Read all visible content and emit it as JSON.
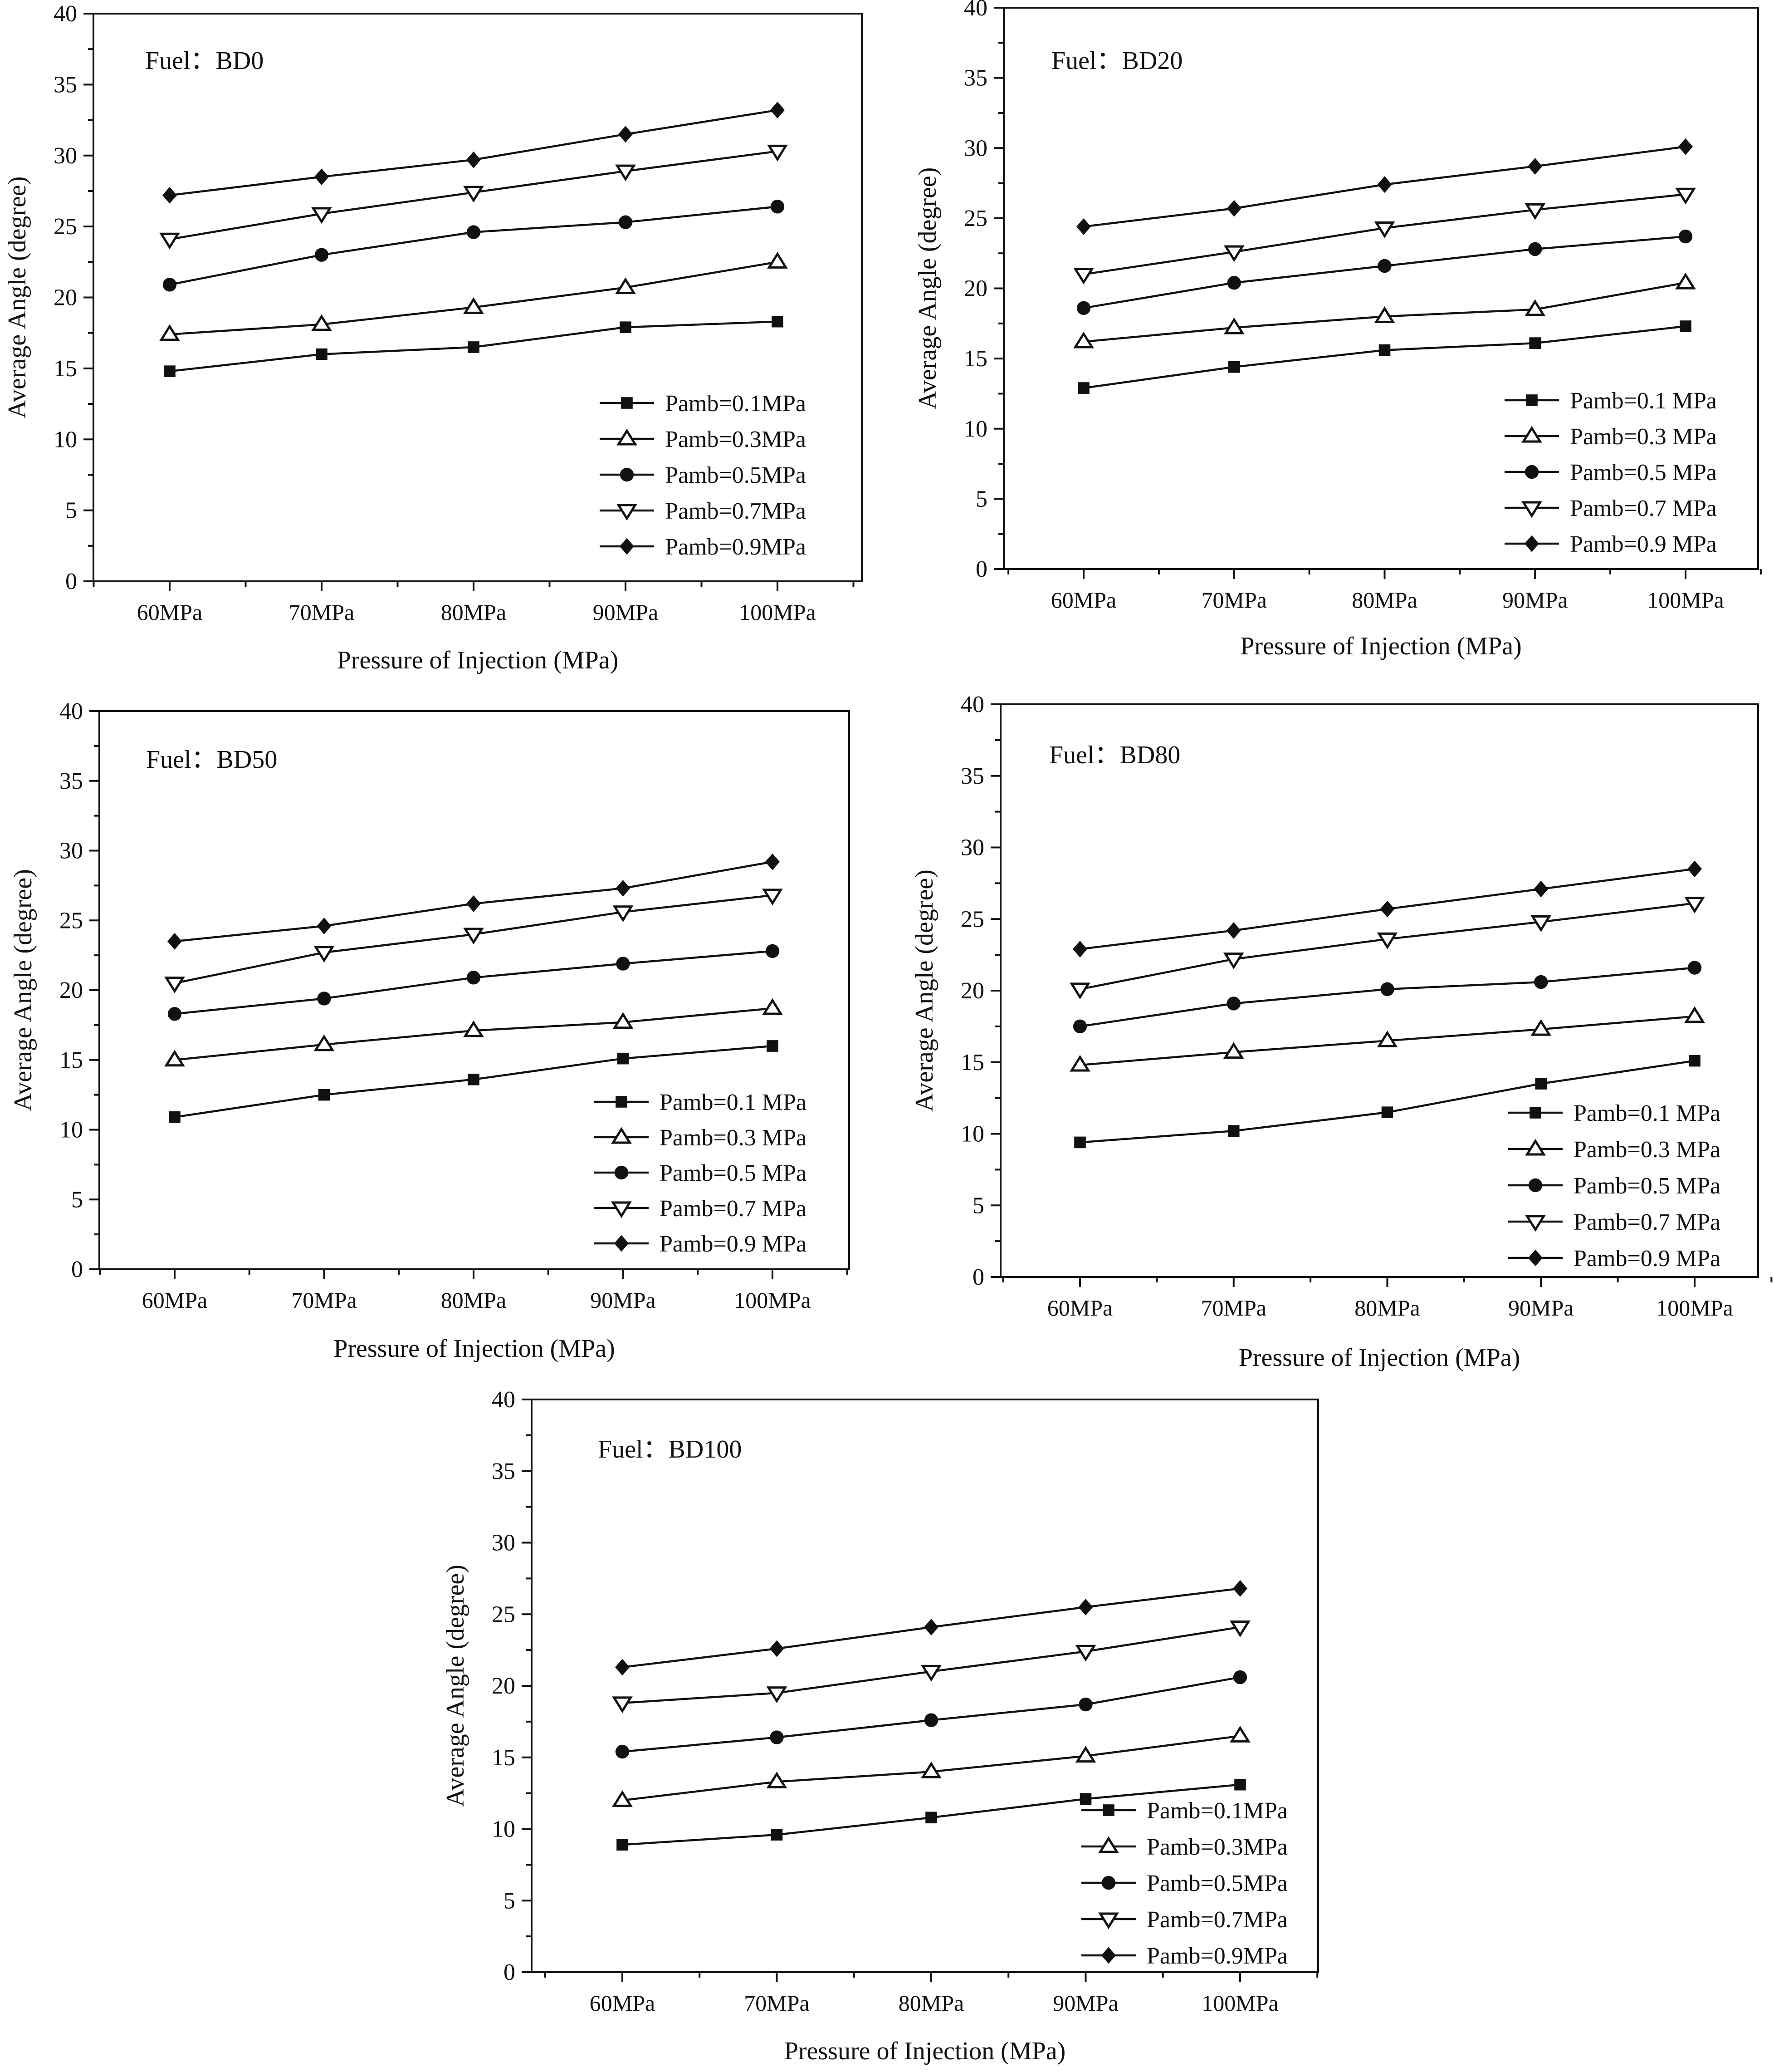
{
  "figure": {
    "description_hidden": false
  },
  "chart_data": [
    {
      "type": "line",
      "title": "Fuel：BD0",
      "xlabel": "Pressure of Injection (MPa)",
      "ylabel": "Average Angle (degree)",
      "ylim": [
        0,
        40
      ],
      "yticks": [
        0,
        5,
        10,
        15,
        20,
        25,
        30,
        35,
        40
      ],
      "categories": [
        "60MPa",
        "70MPa",
        "80MPa",
        "90MPa",
        "100MPa"
      ],
      "legend_position": "bottom-right",
      "series": [
        {
          "name": "Pamb=0.1MPa",
          "marker": "square",
          "values": [
            14.8,
            16.0,
            16.5,
            17.9,
            18.3
          ]
        },
        {
          "name": "Pamb=0.3MPa",
          "marker": "triangle-up",
          "values": [
            17.4,
            18.1,
            19.3,
            20.7,
            22.5
          ]
        },
        {
          "name": "Pamb=0.5MPa",
          "marker": "circle",
          "values": [
            20.9,
            23.0,
            24.6,
            25.3,
            26.4
          ]
        },
        {
          "name": "Pamb=0.7MPa",
          "marker": "triangle-down",
          "values": [
            24.1,
            25.9,
            27.4,
            28.9,
            30.3
          ]
        },
        {
          "name": "Pamb=0.9MPa",
          "marker": "diamond",
          "values": [
            27.2,
            28.5,
            29.7,
            31.5,
            33.2
          ]
        }
      ]
    },
    {
      "type": "line",
      "title": "Fuel：BD20",
      "xlabel": "Pressure of Injection (MPa)",
      "ylabel": "Average Angle (degree)",
      "ylim": [
        0,
        40
      ],
      "yticks": [
        0,
        5,
        10,
        15,
        20,
        25,
        30,
        35,
        40
      ],
      "categories": [
        "60MPa",
        "70MPa",
        "80MPa",
        "90MPa",
        "100MPa"
      ],
      "legend_position": "bottom-right",
      "series": [
        {
          "name": "Pamb=0.1 MPa",
          "marker": "square",
          "values": [
            12.9,
            14.4,
            15.6,
            16.1,
            17.3
          ]
        },
        {
          "name": "Pamb=0.3 MPa",
          "marker": "triangle-up",
          "values": [
            16.2,
            17.2,
            18.0,
            18.5,
            20.4
          ]
        },
        {
          "name": "Pamb=0.5 MPa",
          "marker": "circle",
          "values": [
            18.6,
            20.4,
            21.6,
            22.8,
            23.7
          ]
        },
        {
          "name": "Pamb=0.7 MPa",
          "marker": "triangle-down",
          "values": [
            21.0,
            22.6,
            24.3,
            25.6,
            26.7
          ]
        },
        {
          "name": "Pamb=0.9 MPa",
          "marker": "diamond",
          "values": [
            24.4,
            25.7,
            27.4,
            28.7,
            30.1
          ]
        }
      ]
    },
    {
      "type": "line",
      "title": "Fuel：BD50",
      "xlabel": "Pressure of Injection (MPa)",
      "ylabel": "Average Angle (degree)",
      "ylim": [
        0,
        40
      ],
      "yticks": [
        0,
        5,
        10,
        15,
        20,
        25,
        30,
        35,
        40
      ],
      "categories": [
        "60MPa",
        "70MPa",
        "80MPa",
        "90MPa",
        "100MPa"
      ],
      "legend_position": "bottom-right",
      "series": [
        {
          "name": "Pamb=0.1 MPa",
          "marker": "square",
          "values": [
            10.9,
            12.5,
            13.6,
            15.1,
            16.0
          ]
        },
        {
          "name": "Pamb=0.3 MPa",
          "marker": "triangle-up",
          "values": [
            15.0,
            16.1,
            17.1,
            17.7,
            18.7
          ]
        },
        {
          "name": "Pamb=0.5 MPa",
          "marker": "circle",
          "values": [
            18.3,
            19.4,
            20.9,
            21.9,
            22.8
          ]
        },
        {
          "name": "Pamb=0.7 MPa",
          "marker": "triangle-down",
          "values": [
            20.5,
            22.7,
            24.0,
            25.6,
            26.8
          ]
        },
        {
          "name": "Pamb=0.9 MPa",
          "marker": "diamond",
          "values": [
            23.5,
            24.6,
            26.2,
            27.3,
            29.2
          ]
        }
      ]
    },
    {
      "type": "line",
      "title": "Fuel：BD80",
      "xlabel": "Pressure of Injection (MPa)",
      "ylabel": "Average Angle (degree)",
      "ylim": [
        0,
        40
      ],
      "yticks": [
        0,
        5,
        10,
        15,
        20,
        25,
        30,
        35,
        40
      ],
      "categories": [
        "60MPa",
        "70MPa",
        "80MPa",
        "90MPa",
        "100MPa"
      ],
      "legend_position": "bottom-right",
      "series": [
        {
          "name": "Pamb=0.1 MPa",
          "marker": "square",
          "values": [
            9.4,
            10.2,
            11.5,
            13.5,
            15.1
          ]
        },
        {
          "name": "Pamb=0.3 MPa",
          "marker": "triangle-up",
          "values": [
            14.8,
            15.7,
            16.5,
            17.3,
            18.2
          ]
        },
        {
          "name": "Pamb=0.5 MPa",
          "marker": "circle",
          "values": [
            17.5,
            19.1,
            20.1,
            20.6,
            21.6
          ]
        },
        {
          "name": "Pamb=0.7 MPa",
          "marker": "triangle-down",
          "values": [
            20.1,
            22.2,
            23.6,
            24.8,
            26.1
          ]
        },
        {
          "name": "Pamb=0.9 MPa",
          "marker": "diamond",
          "values": [
            22.9,
            24.2,
            25.7,
            27.1,
            28.5
          ]
        }
      ]
    },
    {
      "type": "line",
      "title": "Fuel：BD100",
      "xlabel": "Pressure of Injection (MPa)",
      "ylabel": "Average Angle (degree)",
      "ylim": [
        0,
        40
      ],
      "yticks": [
        0,
        5,
        10,
        15,
        20,
        25,
        30,
        35,
        40
      ],
      "categories": [
        "60MPa",
        "70MPa",
        "80MPa",
        "90MPa",
        "100MPa"
      ],
      "legend_position": "bottom-right",
      "series": [
        {
          "name": "Pamb=0.1MPa",
          "marker": "square",
          "values": [
            8.9,
            9.6,
            10.8,
            12.1,
            13.1
          ]
        },
        {
          "name": "Pamb=0.3MPa",
          "marker": "triangle-up",
          "values": [
            12.0,
            13.3,
            14.0,
            15.1,
            16.5
          ]
        },
        {
          "name": "Pamb=0.5MPa",
          "marker": "circle",
          "values": [
            15.4,
            16.4,
            17.6,
            18.7,
            20.6
          ]
        },
        {
          "name": "Pamb=0.7MPa",
          "marker": "triangle-down",
          "values": [
            18.8,
            19.5,
            21.0,
            22.4,
            24.1
          ]
        },
        {
          "name": "Pamb=0.9MPa",
          "marker": "diamond",
          "values": [
            21.3,
            22.6,
            24.1,
            25.5,
            26.8
          ]
        }
      ]
    }
  ]
}
